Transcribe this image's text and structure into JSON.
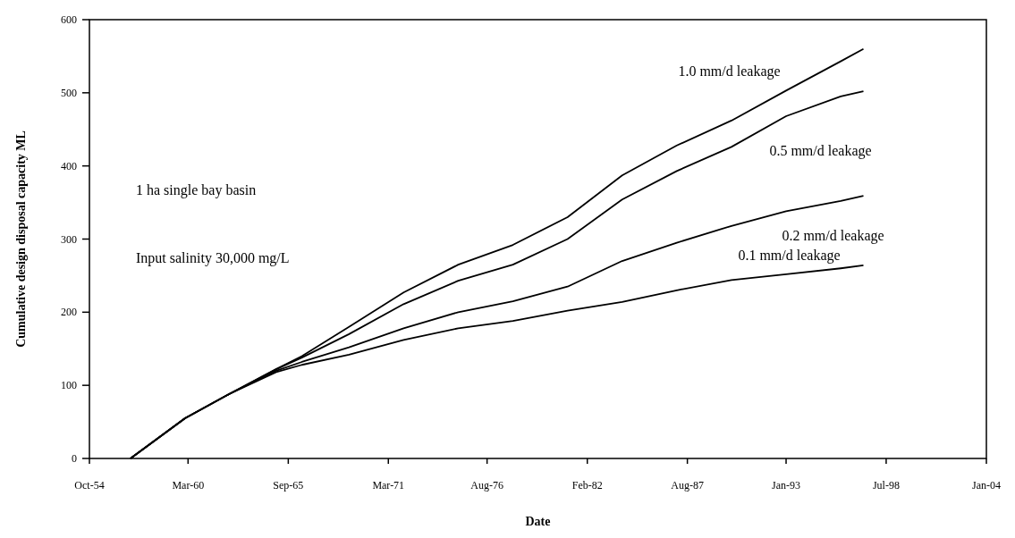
{
  "chart_data": {
    "type": "line",
    "xlabel": "Date",
    "ylabel": "Cumulative design disposal capacity ML",
    "annotations": [
      "1 ha single bay basin",
      "Input salinity 30,000 mg/L"
    ],
    "x": [
      "1957-01",
      "1960-01",
      "1962-06",
      "1965-01",
      "1966-06",
      "1969-01",
      "1972-01",
      "1975-01",
      "1978-01",
      "1981-01",
      "1984-01",
      "1987-01",
      "1990-01",
      "1993-01",
      "1996-01",
      "1997-04"
    ],
    "series": [
      {
        "name": "1.0 mm/d leakage",
        "color": "#000000",
        "values": [
          0,
          55,
          88,
          122,
          140,
          180,
          227,
          265,
          292,
          330,
          387,
          428,
          462,
          503,
          543,
          560
        ]
      },
      {
        "name": "0.5 mm/d leakage",
        "color": "#000000",
        "values": [
          0,
          55,
          88,
          122,
          138,
          170,
          211,
          243,
          265,
          300,
          354,
          393,
          426,
          468,
          495,
          502
        ]
      },
      {
        "name": "0.2 mm/d leakage",
        "color": "#000000",
        "values": [
          0,
          55,
          88,
          120,
          132,
          152,
          178,
          200,
          215,
          235,
          270,
          295,
          318,
          338,
          352,
          359
        ]
      },
      {
        "name": "0.1 mm/d leakage",
        "color": "#000000",
        "values": [
          0,
          55,
          88,
          118,
          128,
          142,
          162,
          178,
          188,
          202,
          214,
          230,
          244,
          252,
          260,
          264
        ]
      }
    ],
    "xlim": [
      "1954-10",
      "2004-01"
    ],
    "xticks": [
      {
        "value": "1954-10",
        "label": "Oct-54"
      },
      {
        "value": "1960-03",
        "label": "Mar-60"
      },
      {
        "value": "1965-09",
        "label": "Sep-65"
      },
      {
        "value": "1971-03",
        "label": "Mar-71"
      },
      {
        "value": "1976-08",
        "label": "Aug-76"
      },
      {
        "value": "1982-02",
        "label": "Feb-82"
      },
      {
        "value": "1987-08",
        "label": "Aug-87"
      },
      {
        "value": "1993-01",
        "label": "Jan-93"
      },
      {
        "value": "1998-07",
        "label": "Jul-98"
      },
      {
        "value": "2004-01",
        "label": "Jan-04"
      }
    ],
    "ylim": [
      0,
      600
    ],
    "yticks": [
      0,
      100,
      200,
      300,
      400,
      500,
      600
    ],
    "grid": false,
    "marker": "none",
    "line_style": "solid"
  }
}
